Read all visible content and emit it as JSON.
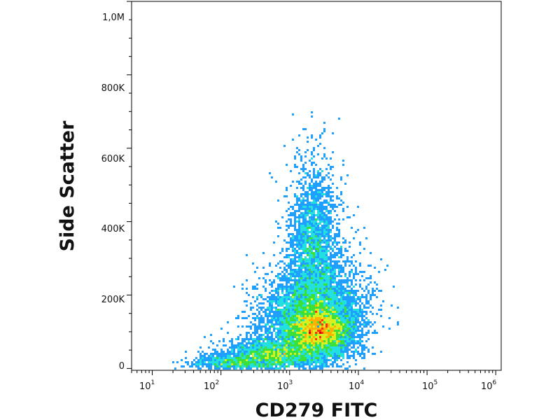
{
  "chart_data": {
    "type": "scatter",
    "subtype": "flow-cytometry density dot plot (pseudocolor)",
    "xlabel": "CD279 FITC",
    "ylabel": "Side Scatter",
    "x_scale": "log",
    "x_range": [
      5,
      1200000
    ],
    "y_range": [
      -5000,
      1000000
    ],
    "x_ticks": [
      {
        "value": 10,
        "base": "10",
        "exp": "1"
      },
      {
        "value": 100,
        "base": "10",
        "exp": "2"
      },
      {
        "value": 1000,
        "base": "10",
        "exp": "3"
      },
      {
        "value": 10000,
        "base": "10",
        "exp": "4"
      },
      {
        "value": 100000,
        "base": "10",
        "exp": "5"
      },
      {
        "value": 1000000,
        "base": "10",
        "exp": "6"
      }
    ],
    "y_ticks": [
      {
        "value": 0,
        "label": "0"
      },
      {
        "value": 200000,
        "label": "200K"
      },
      {
        "value": 400000,
        "label": "400K"
      },
      {
        "value": 600000,
        "label": "600K"
      },
      {
        "value": 800000,
        "label": "800K"
      },
      {
        "value": 1000000,
        "label": "1,0M"
      }
    ],
    "populations": [
      {
        "x_center": 2800,
        "y_center": 100000,
        "x_spread_decades": 0.25,
        "y_spread": 35000,
        "weight": 0.3
      },
      {
        "x_center": 1800,
        "y_center": 150000,
        "x_spread_decades": 0.35,
        "y_spread": 60000,
        "weight": 0.25
      },
      {
        "x_center": 2200,
        "y_center": 330000,
        "x_spread_decades": 0.18,
        "y_spread": 110000,
        "weight": 0.18
      },
      {
        "x_center": 600,
        "y_center": 40000,
        "x_spread_decades": 0.35,
        "y_spread": 25000,
        "weight": 0.17
      },
      {
        "x_center": 150,
        "y_center": 15000,
        "x_spread_decades": 0.3,
        "y_spread": 12000,
        "weight": 0.05
      },
      {
        "x_center": 5000,
        "y_center": 180000,
        "x_spread_decades": 0.3,
        "y_spread": 80000,
        "weight": 0.05
      }
    ],
    "density_colors": [
      "#1f3cff",
      "#1f9fff",
      "#22e0e0",
      "#3be03b",
      "#d8f020",
      "#ffb000",
      "#ff3010",
      "#d00000"
    ],
    "grid": false,
    "legend": "none"
  }
}
